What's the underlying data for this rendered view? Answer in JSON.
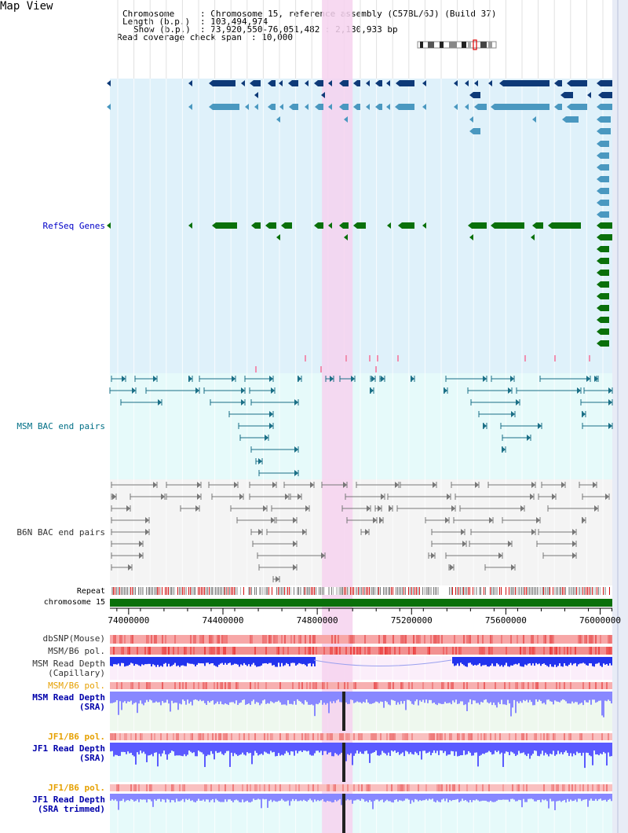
{
  "page_title": "Map View",
  "header": {
    "chromosome_key": "Chromosome",
    "chromosome_value": ": Chromosome 15, reference assembly (C57BL/6J) (Build 37)",
    "length_key": "Length (b.p.)",
    "length_value": ": 103,494,974",
    "show_key": "Show (b.p.)",
    "show_value": ": 73,920,550-76,051,482 : 2,130,933 bp",
    "coverage_key": "Read coverage check span",
    "coverage_value": ": 10,000"
  },
  "tracks": {
    "refseq_label": "RefSeq Genes",
    "msm_bac_label": "MSM BAC end pairs",
    "b6n_bac_label": "B6N BAC end pairs",
    "repeat_label": "Repeat",
    "chromosome_label": "chromosome 15",
    "dbsnp_label": "dbSNP(Mouse)",
    "msm_b6_pol_label": "MSM/B6 pol.",
    "msm_depth_cap_label_1": "MSM Read Depth",
    "msm_depth_cap_label_2": "(Capillary)",
    "msm_b6_pol2_label": "MSM/B6 pol.",
    "msm_depth_sra_label_1": "MSM Read Depth",
    "msm_depth_sra_label_2": "(SRA)",
    "jf1_b6_pol_label": "JF1/B6 pol.",
    "jf1_depth_sra_label_1": "JF1 Read Depth",
    "jf1_depth_sra_label_2": "(SRA)",
    "jf1_b6_pol2_label": "JF1/B6 pol.",
    "jf1_depth_trim_label_1": "JF1 Read Depth",
    "jf1_depth_trim_label_2": "(SRA trimmed)"
  },
  "axis": {
    "start": 73920550,
    "end": 76051482,
    "ticks": [
      {
        "value": 74000000,
        "label": "74000000"
      },
      {
        "value": 74400000,
        "label": "74400000"
      },
      {
        "value": 74800000,
        "label": "74800000"
      },
      {
        "value": 75200000,
        "label": "75200000"
      },
      {
        "value": 75600000,
        "label": "75600000"
      },
      {
        "value": 76000000,
        "label": "76000000"
      }
    ]
  },
  "highlight_region": {
    "start": 74820000,
    "end": 74950000
  },
  "colors": {
    "refseq_bg": "#dff1fa",
    "refseq_dark": "#0e3a78",
    "refseq_mid": "#4a98c0",
    "refseq_green": "#0a700a",
    "msm_bac_bg": "#e6fafa",
    "msm_bac_line": "#1a6f86",
    "b6n_bg": "#f4f4f4",
    "b6n_line": "#777777",
    "highlight": "#f6d2ee",
    "chromosome_bar": "#0a700a",
    "depth_blue": "#2233ee",
    "depth_light_blue": "#8888ff",
    "snp_red": "#f08080"
  }
}
